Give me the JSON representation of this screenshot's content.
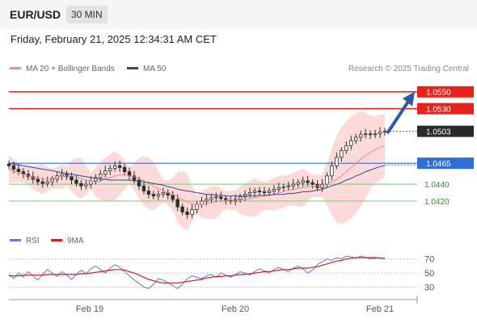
{
  "header": {
    "symbol": "EUR/USD",
    "timeframe": "30 MIN",
    "datetime": "Friday, February 21, 2025 12:34:31 AM CET"
  },
  "legend": {
    "ma_boll": "MA 20 + Bollinger Bands",
    "ma50": "MA 50",
    "copyright": "Research © 2025 Trading Central",
    "rsi": "RSI",
    "rsi_ma": "9MA"
  },
  "colors": {
    "resistance": "#e8231e",
    "support_blue": "#2f6fd1",
    "support_green": "#7cc87c",
    "bollinger_fill": "#fbd3d3",
    "ma20": "#ef8a8a",
    "ma50": "#2c4a8e",
    "candle": "#2f2f2f",
    "rsi_line": "#5b7fd6",
    "rsi_ma": "#d31f1f",
    "arrow": "#2e5aa8"
  },
  "chart_data": [
    {
      "type": "candlestick",
      "title": "EUR/USD 30 MIN",
      "x_ticks": [
        "Feb 19",
        "Feb 20",
        "Feb 21"
      ],
      "y_range": [
        1.0395,
        1.0568
      ],
      "current_price": 1.0503,
      "levels": [
        {
          "label": "1.0550",
          "value": 1.055,
          "kind": "resistance"
        },
        {
          "label": "1.0530",
          "value": 1.053,
          "kind": "resistance"
        },
        {
          "label": "1.0503",
          "value": 1.0503,
          "kind": "last"
        },
        {
          "label": "1.0465",
          "value": 1.0465,
          "kind": "pivot"
        },
        {
          "label": "1.0440",
          "value": 1.044,
          "kind": "support"
        },
        {
          "label": "1.0420",
          "value": 1.042,
          "kind": "support"
        }
      ],
      "close_path": [
        1.0462,
        1.0458,
        1.0455,
        1.0452,
        1.0449,
        1.0446,
        1.0443,
        1.0441,
        1.0443,
        1.0446,
        1.045,
        1.0452,
        1.0449,
        1.0445,
        1.0441,
        1.0438,
        1.044,
        1.0444,
        1.0448,
        1.0452,
        1.0456,
        1.0459,
        1.0462,
        1.046,
        1.0455,
        1.045,
        1.0445,
        1.0438,
        1.0432,
        1.0428,
        1.0426,
        1.0428,
        1.043,
        1.0427,
        1.0422,
        1.0413,
        1.0407,
        1.0404,
        1.041,
        1.0416,
        1.042,
        1.0422,
        1.0424,
        1.0425,
        1.0423,
        1.0421,
        1.042,
        1.0422,
        1.0425,
        1.0428,
        1.043,
        1.0432,
        1.0431,
        1.043,
        1.0432,
        1.0434,
        1.0436,
        1.0437,
        1.0438,
        1.044,
        1.0442,
        1.0444,
        1.0442,
        1.044,
        1.0436,
        1.044,
        1.045,
        1.0462,
        1.0472,
        1.048,
        1.0486,
        1.0492,
        1.0496,
        1.0499,
        1.05,
        1.0499,
        1.05,
        1.0502,
        1.0503
      ],
      "ma20_path": [
        1.0458,
        1.0456,
        1.0454,
        1.0452,
        1.045,
        1.0448,
        1.0447,
        1.0446,
        1.0446,
        1.0447,
        1.0448,
        1.0449,
        1.045,
        1.045,
        1.0449,
        1.0447,
        1.0445,
        1.0444,
        1.0443,
        1.0444,
        1.0446,
        1.0448,
        1.045,
        1.0451,
        1.0451,
        1.045,
        1.0449,
        1.0447,
        1.0444,
        1.0441,
        1.0438,
        1.0435,
        1.0432,
        1.043,
        1.0428,
        1.0425,
        1.0422,
        1.0419,
        1.0417,
        1.0416,
        1.0416,
        1.0417,
        1.0418,
        1.0419,
        1.042,
        1.0421,
        1.0421,
        1.0421,
        1.0421,
        1.0422,
        1.0423,
        1.0424,
        1.0425,
        1.0426,
        1.0427,
        1.0428,
        1.043,
        1.0431,
        1.0433,
        1.0434,
        1.0435,
        1.0436,
        1.0437,
        1.0438,
        1.0438,
        1.0438,
        1.044,
        1.0443,
        1.0446,
        1.045,
        1.0455,
        1.046,
        1.0465,
        1.047,
        1.0474,
        1.0478,
        1.0481,
        1.0484,
        1.0486
      ],
      "ma50_path": [
        1.0465,
        1.0464,
        1.0463,
        1.0462,
        1.0461,
        1.046,
        1.0459,
        1.0458,
        1.0457,
        1.0456,
        1.0455,
        1.0454,
        1.0453,
        1.0452,
        1.0451,
        1.045,
        1.0449,
        1.0448,
        1.0447,
        1.0446,
        1.0446,
        1.0445,
        1.0445,
        1.0445,
        1.0445,
        1.0445,
        1.0444,
        1.0444,
        1.0443,
        1.0442,
        1.0441,
        1.044,
        1.0439,
        1.0437,
        1.0436,
        1.0434,
        1.0433,
        1.0432,
        1.0431,
        1.043,
        1.0429,
        1.0428,
        1.0428,
        1.0427,
        1.0427,
        1.0426,
        1.0426,
        1.0426,
        1.0426,
        1.0426,
        1.0426,
        1.0426,
        1.0427,
        1.0427,
        1.0427,
        1.0428,
        1.0428,
        1.0428,
        1.0429,
        1.0429,
        1.043,
        1.0431,
        1.0431,
        1.0432,
        1.0433,
        1.0434,
        1.0436,
        1.0438,
        1.044,
        1.0442,
        1.0445,
        1.0447,
        1.045,
        1.0452,
        1.0455,
        1.0457,
        1.0459,
        1.0461,
        1.0462
      ],
      "forecast": {
        "from": 1.0503,
        "to": 1.055
      }
    },
    {
      "type": "line",
      "title": "RSI",
      "y_ticks": [
        70,
        50,
        30
      ],
      "y_range": [
        18,
        80
      ],
      "series": [
        {
          "name": "RSI",
          "values": [
            48,
            42,
            50,
            44,
            52,
            46,
            40,
            48,
            55,
            50,
            45,
            52,
            47,
            41,
            48,
            54,
            49,
            56,
            60,
            55,
            50,
            57,
            62,
            58,
            52,
            46,
            40,
            35,
            30,
            28,
            34,
            42,
            40,
            36,
            32,
            28,
            34,
            42,
            46,
            44,
            42,
            46,
            48,
            44,
            50,
            47,
            44,
            48,
            52,
            50,
            47,
            52,
            56,
            53,
            50,
            55,
            58,
            55,
            52,
            57,
            60,
            56,
            50,
            54,
            62,
            66,
            70,
            68,
            72,
            70,
            74,
            73,
            71,
            74,
            72,
            70,
            71,
            72,
            70
          ]
        },
        {
          "name": "9MA",
          "values": [
            46,
            46,
            46,
            47,
            47,
            47,
            47,
            47,
            48,
            48,
            48,
            48,
            48,
            48,
            48,
            49,
            49,
            50,
            51,
            52,
            53,
            54,
            55,
            55,
            54,
            52,
            50,
            47,
            44,
            41,
            39,
            37,
            36,
            36,
            36,
            36,
            37,
            38,
            39,
            40,
            41,
            43,
            44,
            45,
            45,
            46,
            46,
            47,
            48,
            48,
            49,
            50,
            51,
            52,
            52,
            53,
            54,
            55,
            55,
            56,
            57,
            57,
            57,
            58,
            59,
            61,
            63,
            65,
            67,
            68,
            70,
            71,
            72,
            72,
            72,
            72,
            72,
            71,
            71
          ]
        }
      ]
    }
  ]
}
